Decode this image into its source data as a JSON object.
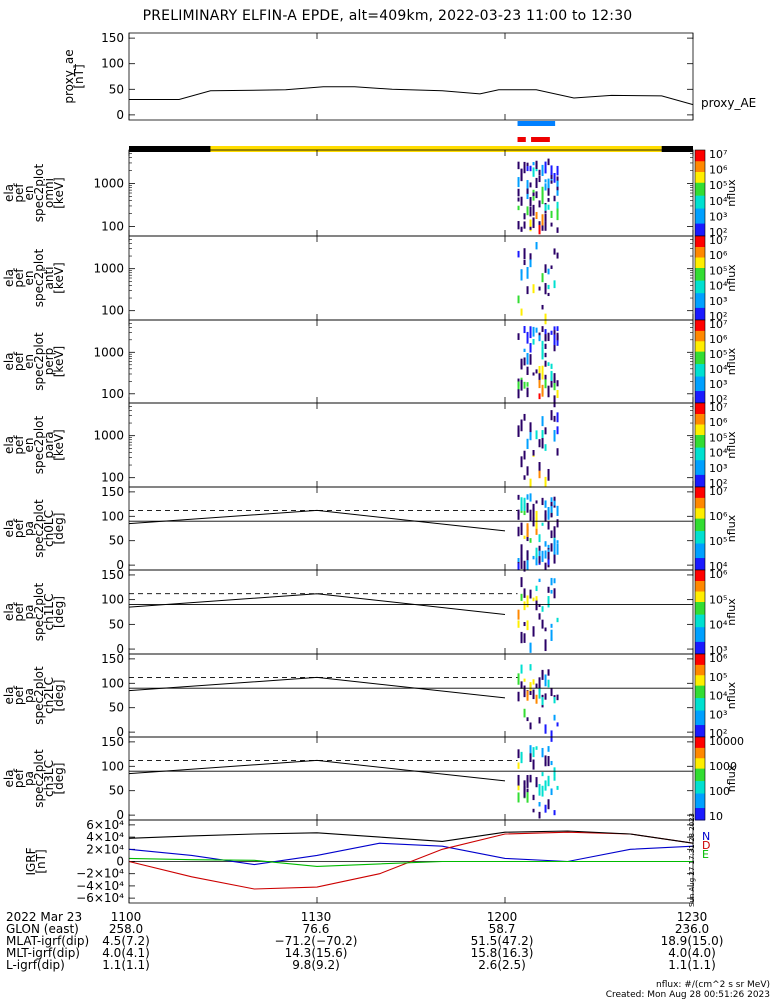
{
  "title": "PRELIMINARY ELFIN-A EPDE, alt=409km, 2022-03-23 11:00 to 12:30",
  "panels": [
    {
      "ylabel": [
        "proxy_ae",
        "[nT]"
      ],
      "right_label": "proxy_AE",
      "yticks": [
        "0",
        "50",
        "100",
        "150"
      ]
    },
    {
      "ylabel": [
        "ela",
        "pef",
        "en",
        "spec2plot",
        "omni",
        "[keV]"
      ],
      "yticks": [
        "100",
        "1000"
      ],
      "cb_label": "nflux",
      "cb_ticks": [
        "10²",
        "10³",
        "10⁴",
        "10⁵",
        "10⁶",
        "10⁷"
      ]
    },
    {
      "ylabel": [
        "ela",
        "pef",
        "en",
        "spec2plot",
        "anti",
        "[keV]"
      ],
      "yticks": [
        "100",
        "1000"
      ],
      "cb_label": "nflux",
      "cb_ticks": [
        "10²",
        "10³",
        "10⁴",
        "10⁵",
        "10⁶",
        "10⁷"
      ]
    },
    {
      "ylabel": [
        "ela",
        "pef",
        "en",
        "spec2plot",
        "perp",
        "[keV]"
      ],
      "yticks": [
        "100",
        "1000"
      ],
      "cb_label": "nflux",
      "cb_ticks": [
        "10²",
        "10³",
        "10⁴",
        "10⁵",
        "10⁶",
        "10⁷"
      ]
    },
    {
      "ylabel": [
        "ela",
        "pef",
        "en",
        "spec2plot",
        "para",
        "[keV]"
      ],
      "yticks": [
        "100",
        "1000"
      ],
      "cb_label": "nflux",
      "cb_ticks": [
        "10²",
        "10³",
        "10⁴",
        "10⁵",
        "10⁶",
        "10⁷"
      ]
    },
    {
      "ylabel": [
        "ela",
        "pef",
        "pa",
        "spec2plot",
        "ch0LC",
        "[deg]"
      ],
      "yticks": [
        "0",
        "50",
        "100",
        "150"
      ],
      "cb_label": "nflux",
      "cb_ticks": [
        "10⁴",
        "10⁵",
        "10⁶",
        "10⁷"
      ]
    },
    {
      "ylabel": [
        "ela",
        "pef",
        "pa",
        "spec2plot",
        "ch1LC",
        "[deg]"
      ],
      "yticks": [
        "0",
        "50",
        "100",
        "150"
      ],
      "cb_label": "nflux",
      "cb_ticks": [
        "10³",
        "10⁴",
        "10⁵",
        "10⁶"
      ]
    },
    {
      "ylabel": [
        "ela",
        "pef",
        "pa",
        "spec2plot",
        "ch2LC",
        "[deg]"
      ],
      "yticks": [
        "0",
        "50",
        "100",
        "150"
      ],
      "cb_label": "nflux",
      "cb_ticks": [
        "10²",
        "10³",
        "10⁴",
        "10⁵",
        "10⁶"
      ]
    },
    {
      "ylabel": [
        "ela",
        "pef",
        "pa",
        "spec2plot",
        "ch3LC",
        "[deg]"
      ],
      "yticks": [
        "0",
        "50",
        "100",
        "150"
      ],
      "cb_label": "nflux",
      "cb_ticks": [
        "10",
        "100",
        "1000",
        "10000"
      ]
    },
    {
      "ylabel": [
        "IGRF",
        "[nT]"
      ],
      "yticks": [
        "−6×10⁴",
        "−4×10⁴",
        "−2×10⁴",
        "0",
        "2×10⁴",
        "4×10⁴",
        "6×10⁴"
      ],
      "legend": [
        "N",
        "D",
        "E"
      ]
    }
  ],
  "side_stamp": "Sun Aug 27 17:31:28 2023",
  "bottom": {
    "rows": [
      {
        "label": "2022 Mar 23",
        "values": [
          "1100",
          "1130",
          "1200",
          "1230"
        ]
      },
      {
        "label": "GLON (east)",
        "values": [
          "258.0",
          "76.6",
          "58.7",
          "236.0"
        ]
      },
      {
        "label": "MLAT-igrf(dip)",
        "values": [
          "4.5(7.2)",
          "−71.2(−70.2)",
          "51.5(47.2)",
          "18.9(15.0)"
        ]
      },
      {
        "label": "MLT-igrf(dip)",
        "values": [
          "4.0(4.1)",
          "14.3(15.6)",
          "15.8(16.3)",
          "4.0(4.0)"
        ]
      },
      {
        "label": "L-igrf(dip)",
        "values": [
          "1.1(1.1)",
          "9.8(9.2)",
          "2.6(2.5)",
          "1.1(1.1)"
        ]
      }
    ],
    "footnote_units": "nflux: #/(cm^2 s sr MeV)",
    "footnote_created": "Created: Mon Aug 28 00:51:26 2023"
  },
  "colors": {
    "N": "#0000cc",
    "D": "#cc0000",
    "E": "#00bb00",
    "yellow_bar": "#ffdd00",
    "blue_bar": "#0080ff",
    "red_bar": "#ee0000"
  },
  "chart_data": {
    "type": "line",
    "x_unit": "UT time",
    "xlim": [
      "11:00",
      "12:30"
    ],
    "proxy_ae": {
      "name": "proxy_AE",
      "ylim": [
        0,
        150
      ],
      "x": [
        "11:00",
        "11:08",
        "11:13",
        "11:25",
        "11:31",
        "11:36",
        "11:42",
        "11:50",
        "11:56",
        "11:59",
        "12:05",
        "12:11",
        "12:17",
        "12:25",
        "12:30"
      ],
      "values": [
        30,
        30,
        47,
        49,
        55,
        55,
        50,
        47,
        41,
        49,
        49,
        33,
        38,
        37,
        20
      ]
    },
    "pa_overlays": {
      "dashed_line_deg": 112,
      "solid_line_deg": 90,
      "loss_cone_x": [
        "11:00",
        "11:30",
        "12:00"
      ],
      "loss_cone_deg": [
        85,
        112,
        70
      ]
    },
    "igrf": {
      "ylim": [
        -60000,
        60000
      ],
      "x": [
        "11:00",
        "11:10",
        "11:20",
        "11:30",
        "11:40",
        "11:50",
        "12:00",
        "12:10",
        "12:20",
        "12:30"
      ],
      "series": [
        {
          "name": "N",
          "values": [
            20000,
            10000,
            -5000,
            10000,
            30000,
            25000,
            5000,
            0,
            20000,
            25000
          ]
        },
        {
          "name": "D",
          "values": [
            0,
            -25000,
            -45000,
            -42000,
            -20000,
            20000,
            45000,
            48000,
            45000,
            30000
          ]
        },
        {
          "name": "E",
          "values": [
            5000,
            3000,
            2000,
            -8000,
            -4000,
            0,
            0,
            0,
            0,
            0
          ]
        },
        {
          "name": "total",
          "values": [
            38000,
            42000,
            45000,
            47000,
            40000,
            33000,
            48000,
            50000,
            45000,
            30000
          ]
        }
      ]
    },
    "spectrogram_activity_window": [
      "12:02",
      "12:09"
    ]
  }
}
